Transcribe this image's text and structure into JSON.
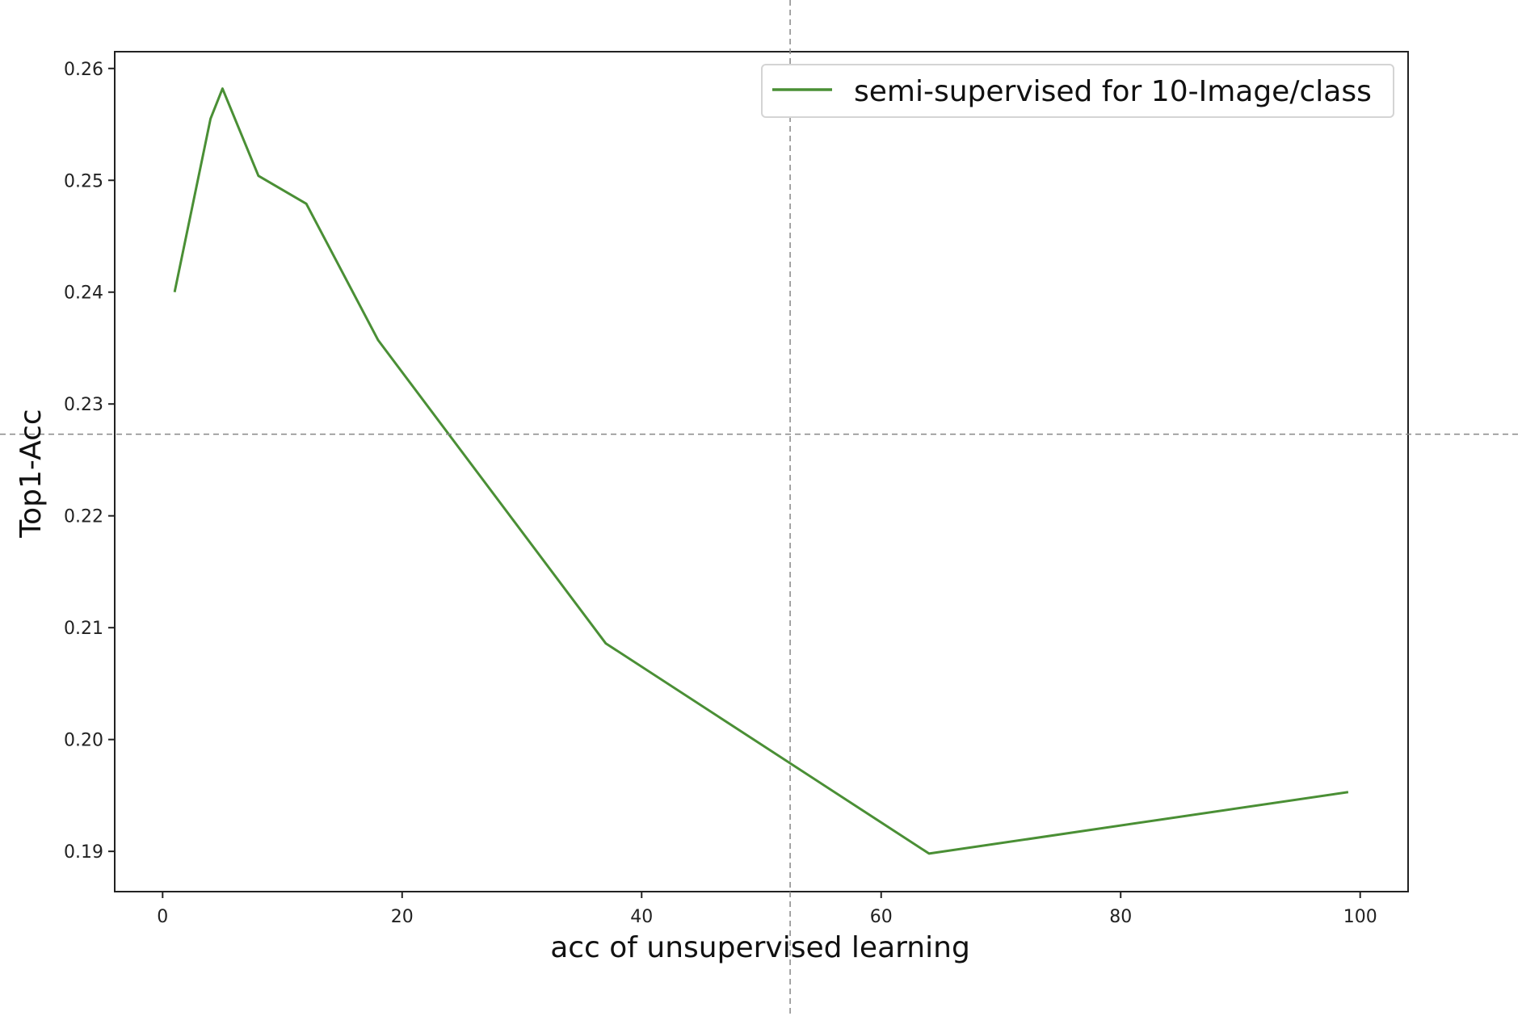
{
  "chart_data": {
    "type": "line",
    "title": "",
    "xlabel": "acc of unsupervised learning",
    "ylabel": "Top1-Acc",
    "xlim": [
      -4,
      104
    ],
    "ylim": [
      0.1864,
      0.2615
    ],
    "xticks": [
      0,
      20,
      40,
      60,
      80,
      100
    ],
    "yticks": [
      0.19,
      0.2,
      0.21,
      0.22,
      0.23,
      0.24,
      0.25,
      0.26
    ],
    "xtick_labels": [
      "0",
      "20",
      "40",
      "60",
      "80",
      "100"
    ],
    "ytick_labels": [
      "0.19",
      "0.20",
      "0.21",
      "0.22",
      "0.23",
      "0.24",
      "0.25",
      "0.26"
    ],
    "grid": false,
    "legend_position": "upper-right",
    "crosshair": {
      "x": 52.4,
      "y": 0.2273
    },
    "series": [
      {
        "name": "semi-supervised for 10-Image/class",
        "color": "#4a8f35",
        "x": [
          1,
          4,
          5,
          8,
          12,
          18,
          37,
          64,
          99
        ],
        "y": [
          0.24,
          0.2555,
          0.2582,
          0.2504,
          0.2479,
          0.2357,
          0.2086,
          0.1898,
          0.1953
        ]
      }
    ]
  }
}
